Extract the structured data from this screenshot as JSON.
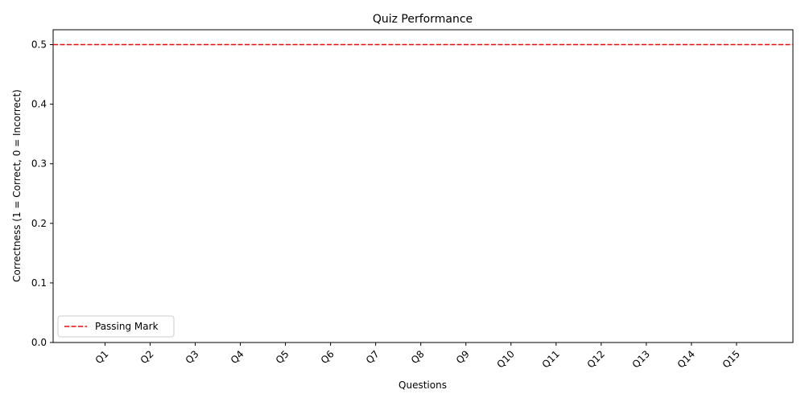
{
  "chart_data": {
    "type": "bar",
    "title": "Quiz Performance",
    "xlabel": "Questions",
    "ylabel": "Correctness (1 = Correct, 0 = Incorrect)",
    "categories": [
      "Q1",
      "Q2",
      "Q3",
      "Q4",
      "Q5",
      "Q6",
      "Q7",
      "Q8",
      "Q9",
      "Q10",
      "Q11",
      "Q12",
      "Q13",
      "Q14",
      "Q15"
    ],
    "ylim": [
      0,
      0.525
    ],
    "yticks": [
      0.0,
      0.1,
      0.2,
      0.3,
      0.4,
      0.5
    ],
    "ytick_labels": [
      "0.0",
      "0.1",
      "0.2",
      "0.3",
      "0.4",
      "0.5"
    ],
    "xtick_rotation_deg": 45,
    "reference_line": {
      "value": 0.5,
      "label": "Passing Mark",
      "color": "#ff0000",
      "style": "dashed"
    },
    "legend": {
      "position": "lower-left",
      "entries": [
        "Passing Mark"
      ]
    },
    "grid": false
  }
}
